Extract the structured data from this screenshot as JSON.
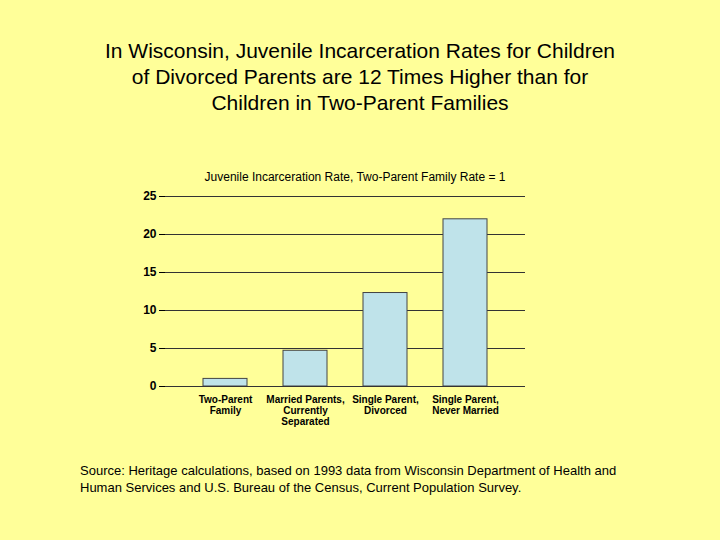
{
  "chart_data": {
    "type": "bar",
    "title": "In Wisconsin, Juvenile Incarceration Rates for Children of Divorced Parents are 12 Times Higher than for Children in Two-Parent Families",
    "subtitle": "Juvenile Incarceration Rate, Two-Parent Family Rate = 1",
    "source": "Source: Heritage calculations, based on 1993 data from Wisconsin Department of Health and Human Services and U.S. Bureau of the Census, Current Population Survey.",
    "categories": [
      "Two-Parent\nFamily",
      "Married Parents,\nCurrently\nSeparated",
      "Single Parent,\nDivorced",
      "Single Parent,\nNever Married"
    ],
    "values": [
      1,
      4.7,
      12.3,
      22
    ],
    "color": "#bfe3ea",
    "ylim": [
      0,
      25
    ],
    "yticks": [
      0,
      5,
      10,
      15,
      20,
      25
    ],
    "grid": true
  }
}
